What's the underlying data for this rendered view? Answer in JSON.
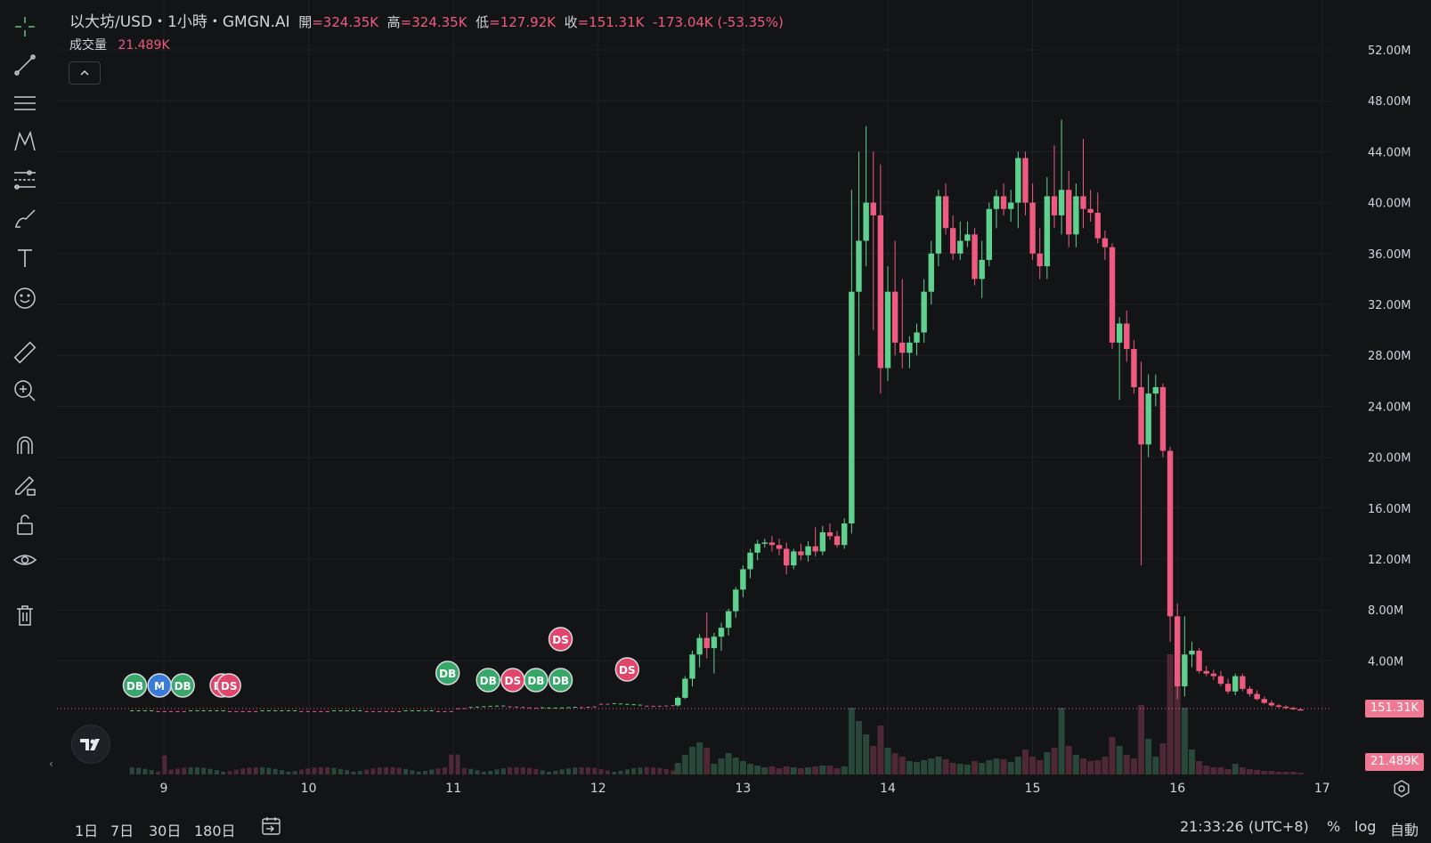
{
  "legend": {
    "symbol": "以大坊/USD・1小時・GMGN.AI",
    "open_label": "開",
    "open_value": "=324.35K",
    "high_label": "高",
    "high_value": "=324.35K",
    "low_label": "低",
    "low_value": "=127.92K",
    "close_label": "收",
    "close_value": "=151.31K",
    "change": "-173.04K (-53.35%)"
  },
  "volume": {
    "label": "成交量",
    "value": "21.489K"
  },
  "toolbar": {
    "items": [
      "crosshair-icon",
      "trend-line-icon",
      "fib-retracement-icon",
      "pattern-icon",
      "forecast-icon",
      "brush-icon",
      "text-icon",
      "emoji-icon",
      "ruler-icon",
      "zoom-in-icon",
      "magnet-icon",
      "lock-drawing-icon",
      "unlock-icon",
      "eye-icon",
      "trash-icon"
    ]
  },
  "price_labels": {
    "last_price": "151.31K",
    "last_volume": "21.489K"
  },
  "time_ranges": [
    "1日",
    "7日",
    "30日",
    "180日"
  ],
  "footer": {
    "clock": "21:33:26 (UTC+8)",
    "percent": "%",
    "log": "log",
    "auto": "自動"
  },
  "colors": {
    "up": "#5fd18e",
    "down": "#ef5a80",
    "background": "#131416",
    "grid": "#1f2126",
    "text": "#d1d4dc"
  },
  "chart_data": {
    "type": "candlestick",
    "y_ticks": [
      "52.00M",
      "48.00M",
      "44.00M",
      "40.00M",
      "36.00M",
      "32.00M",
      "28.00M",
      "24.00M",
      "20.00M",
      "16.00M",
      "12.00M",
      "8.00M",
      "4.00M"
    ],
    "x_ticks": [
      "9",
      "10",
      "11",
      "12",
      "13",
      "14",
      "15",
      "16",
      "17"
    ],
    "ylim": [
      0,
      54000000
    ],
    "markers": [
      {
        "label": "DB",
        "type": "buy",
        "day": 8.8
      },
      {
        "label": "M",
        "type": "mid",
        "day": 8.97
      },
      {
        "label": "DB",
        "type": "buy",
        "day": 9.13
      },
      {
        "label": "DS",
        "type": "sell",
        "day": 9.4
      },
      {
        "label": "DS",
        "type": "sell",
        "day": 9.45
      },
      {
        "label": "DB",
        "type": "buy",
        "day": 10.96
      },
      {
        "label": "DB",
        "type": "buy",
        "day": 11.24
      },
      {
        "label": "DS",
        "type": "sell",
        "day": 11.41
      },
      {
        "label": "DB",
        "type": "buy",
        "day": 11.57
      },
      {
        "label": "DB",
        "type": "buy",
        "day": 11.74
      },
      {
        "label": "DS",
        "type": "sell",
        "day": 11.74,
        "high": true
      },
      {
        "label": "DS",
        "type": "sell",
        "day": 12.2
      }
    ],
    "candles": [
      [
        12.55,
        0.5,
        1.2,
        0.4,
        1.1,
        1.3
      ],
      [
        12.6,
        1.1,
        2.8,
        1.0,
        2.6,
        2.2
      ],
      [
        12.65,
        2.6,
        4.8,
        2.0,
        4.5,
        3.1
      ],
      [
        12.7,
        4.5,
        6.1,
        3.5,
        5.8,
        3.6
      ],
      [
        12.75,
        5.8,
        7.8,
        4.2,
        5.0,
        3.0
      ],
      [
        12.8,
        5.0,
        6.2,
        3.0,
        5.9,
        1.2
      ],
      [
        12.85,
        5.9,
        7.0,
        4.8,
        6.6,
        1.8
      ],
      [
        12.9,
        6.6,
        8.1,
        6.0,
        7.9,
        2.4
      ],
      [
        12.95,
        7.9,
        9.8,
        7.4,
        9.6,
        1.9
      ],
      [
        13.0,
        9.6,
        11.5,
        9.0,
        11.2,
        1.5
      ],
      [
        13.05,
        11.2,
        12.8,
        10.5,
        12.5,
        1.2
      ],
      [
        13.1,
        12.5,
        13.5,
        11.9,
        13.2,
        1.0
      ],
      [
        13.15,
        13.2,
        13.6,
        12.9,
        13.3,
        0.8
      ],
      [
        13.2,
        13.3,
        13.8,
        12.6,
        13.1,
        0.9
      ],
      [
        13.25,
        13.1,
        13.6,
        12.3,
        12.8,
        0.7
      ],
      [
        13.3,
        12.8,
        13.3,
        10.8,
        11.5,
        0.9
      ],
      [
        13.35,
        11.5,
        12.8,
        11.2,
        12.6,
        0.8
      ],
      [
        13.4,
        12.6,
        13.2,
        11.9,
        12.3,
        0.7
      ],
      [
        13.45,
        12.3,
        13.4,
        11.8,
        13.0,
        0.8
      ],
      [
        13.5,
        13.0,
        14.5,
        12.2,
        12.6,
        0.9
      ],
      [
        13.55,
        12.6,
        14.6,
        12.3,
        14.1,
        1.0
      ],
      [
        13.6,
        14.1,
        14.8,
        13.5,
        13.8,
        1.0
      ],
      [
        13.65,
        13.8,
        14.2,
        12.9,
        13.1,
        0.7
      ],
      [
        13.7,
        13.1,
        15.2,
        12.8,
        14.8,
        0.9
      ],
      [
        13.75,
        14.8,
        41.0,
        14.0,
        33.0,
        7.5
      ],
      [
        13.8,
        33.0,
        44.0,
        28.0,
        37.0,
        6.0
      ],
      [
        13.85,
        37.0,
        46.0,
        35.0,
        40.0,
        4.5
      ],
      [
        13.9,
        40.0,
        44.0,
        30.0,
        39.0,
        3.2
      ],
      [
        13.95,
        39.0,
        43.0,
        25.0,
        27.0,
        5.5
      ],
      [
        14.0,
        27.0,
        35.0,
        26.0,
        33.0,
        3.0
      ],
      [
        14.05,
        33.0,
        37.0,
        28.0,
        29.0,
        2.4
      ],
      [
        14.1,
        29.0,
        34.0,
        27.0,
        28.2,
        2.0
      ],
      [
        14.15,
        28.2,
        29.5,
        27.0,
        29.0,
        1.5
      ],
      [
        14.2,
        29.0,
        30.5,
        28.0,
        29.8,
        1.4
      ],
      [
        14.25,
        29.8,
        34.0,
        29.0,
        33.0,
        1.6
      ],
      [
        14.3,
        33.0,
        37.0,
        32.0,
        36.0,
        1.8
      ],
      [
        14.35,
        36.0,
        41.0,
        35.0,
        40.5,
        2.0
      ],
      [
        14.4,
        40.5,
        41.5,
        37.5,
        38.0,
        1.7
      ],
      [
        14.45,
        38.0,
        39.0,
        35.5,
        36.0,
        1.3
      ],
      [
        14.5,
        36.0,
        38.5,
        35.5,
        37.0,
        1.2
      ],
      [
        14.55,
        37.0,
        38.5,
        36.5,
        37.5,
        1.1
      ],
      [
        14.6,
        37.5,
        38.0,
        33.5,
        34.0,
        1.5
      ],
      [
        14.65,
        34.0,
        37.0,
        32.5,
        35.5,
        1.3
      ],
      [
        14.7,
        35.5,
        40.0,
        35.0,
        39.5,
        1.6
      ],
      [
        14.75,
        39.5,
        41.0,
        38.0,
        40.5,
        1.8
      ],
      [
        14.8,
        40.5,
        41.5,
        39.0,
        39.5,
        1.7
      ],
      [
        14.85,
        39.5,
        41.0,
        38.5,
        40.0,
        1.4
      ],
      [
        14.9,
        40.0,
        44.0,
        38.0,
        43.5,
        2.0
      ],
      [
        14.95,
        43.5,
        44.0,
        39.0,
        40.0,
        2.8
      ],
      [
        15.0,
        40.0,
        41.5,
        35.5,
        36.0,
        2.0
      ],
      [
        15.05,
        36.0,
        38.0,
        34.0,
        35.0,
        1.6
      ],
      [
        15.1,
        35.0,
        42.0,
        34.0,
        40.5,
        2.5
      ],
      [
        15.15,
        40.5,
        44.5,
        38.0,
        39.0,
        3.0
      ],
      [
        15.2,
        39.0,
        46.5,
        37.5,
        41.0,
        7.5
      ],
      [
        15.25,
        41.0,
        42.5,
        36.5,
        37.5,
        3.2
      ],
      [
        15.3,
        37.5,
        41.5,
        36.5,
        40.5,
        2.2
      ],
      [
        15.35,
        40.5,
        45.0,
        38.0,
        39.5,
        1.8
      ],
      [
        15.4,
        39.5,
        41.0,
        38.5,
        39.2,
        1.5
      ],
      [
        15.45,
        39.2,
        40.8,
        36.8,
        37.2,
        1.6
      ],
      [
        15.5,
        37.2,
        37.8,
        35.5,
        36.5,
        2.0
      ],
      [
        15.55,
        36.5,
        36.8,
        28.5,
        29.0,
        4.2
      ],
      [
        15.6,
        29.0,
        31.0,
        24.5,
        30.5,
        3.2
      ],
      [
        15.65,
        30.5,
        31.5,
        27.5,
        28.5,
        2.2
      ],
      [
        15.7,
        28.5,
        29.2,
        25.0,
        25.5,
        1.8
      ],
      [
        15.75,
        25.5,
        27.5,
        11.5,
        21.0,
        7.8
      ],
      [
        15.8,
        21.0,
        26.5,
        20.0,
        25.0,
        4.0
      ],
      [
        15.85,
        25.0,
        26.5,
        24.0,
        25.5,
        2.0
      ],
      [
        15.9,
        25.5,
        25.8,
        20.0,
        20.5,
        3.5
      ],
      [
        15.95,
        20.5,
        20.8,
        5.5,
        7.5,
        13.5
      ],
      [
        16.0,
        7.5,
        8.5,
        1.0,
        2.0,
        11.0
      ],
      [
        16.05,
        2.0,
        7.5,
        1.2,
        4.5,
        7.5
      ],
      [
        16.1,
        4.5,
        5.5,
        3.5,
        4.8,
        2.8
      ],
      [
        16.15,
        4.8,
        5.0,
        3.0,
        3.2,
        1.5
      ],
      [
        16.2,
        3.2,
        3.6,
        2.8,
        3.0,
        1.0
      ],
      [
        16.25,
        3.0,
        3.3,
        2.5,
        2.8,
        0.8
      ],
      [
        16.3,
        2.8,
        3.2,
        2.0,
        2.2,
        0.8
      ],
      [
        16.35,
        2.2,
        2.6,
        1.4,
        1.6,
        0.6
      ],
      [
        16.4,
        1.6,
        3.0,
        1.3,
        2.8,
        1.2
      ],
      [
        16.45,
        2.8,
        3.0,
        1.6,
        1.8,
        0.8
      ],
      [
        16.5,
        1.8,
        2.0,
        1.2,
        1.4,
        0.6
      ],
      [
        16.55,
        1.4,
        1.7,
        0.9,
        1.0,
        0.5
      ],
      [
        16.6,
        1.0,
        1.2,
        0.6,
        0.7,
        0.4
      ],
      [
        16.65,
        0.7,
        0.9,
        0.4,
        0.5,
        0.4
      ],
      [
        16.7,
        0.5,
        0.6,
        0.3,
        0.4,
        0.3
      ],
      [
        16.75,
        0.4,
        0.5,
        0.2,
        0.3,
        0.3
      ],
      [
        16.8,
        0.3,
        0.4,
        0.15,
        0.2,
        0.3
      ],
      [
        16.85,
        0.2,
        0.3,
        0.12,
        0.15,
        0.2
      ]
    ]
  }
}
